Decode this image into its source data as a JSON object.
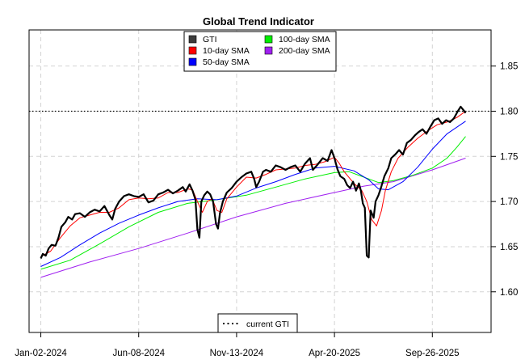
{
  "chart_data": {
    "type": "line",
    "title": "Global Trend Indicator",
    "xlabel": "",
    "ylabel": "",
    "x_tick_labels": [
      "Jan-02-2024",
      "Jun-08-2024",
      "Nov-13-2024",
      "Apr-20-2025",
      "Sep-26-2025"
    ],
    "y_tick_labels": [
      "1.60",
      "1.65",
      "1.70",
      "1.75",
      "1.80",
      "1.85"
    ],
    "y_ticks": [
      1.6,
      1.65,
      1.7,
      1.75,
      1.8,
      1.85
    ],
    "xlim": [
      -0.12,
      4.6
    ],
    "ylim": [
      1.555,
      1.89
    ],
    "grid": true,
    "legend_position": "top-center",
    "reference_line": {
      "value": 1.8,
      "style": "dotted",
      "color": "#000000",
      "label": "current GTI"
    },
    "series": [
      {
        "name": "GTI",
        "color": "#000000",
        "width": 2.2,
        "legend_swatch": "#3c3c3c",
        "points": [
          [
            0,
            1.637
          ],
          [
            0.02,
            1.642
          ],
          [
            0.05,
            1.64
          ],
          [
            0.08,
            1.648
          ],
          [
            0.11,
            1.652
          ],
          [
            0.15,
            1.651
          ],
          [
            0.18,
            1.66
          ],
          [
            0.21,
            1.672
          ],
          [
            0.25,
            1.677
          ],
          [
            0.28,
            1.683
          ],
          [
            0.32,
            1.68
          ],
          [
            0.35,
            1.686
          ],
          [
            0.4,
            1.687
          ],
          [
            0.45,
            1.683
          ],
          [
            0.5,
            1.688
          ],
          [
            0.55,
            1.691
          ],
          [
            0.6,
            1.689
          ],
          [
            0.65,
            1.695
          ],
          [
            0.7,
            1.685
          ],
          [
            0.73,
            1.68
          ],
          [
            0.76,
            1.692
          ],
          [
            0.8,
            1.7
          ],
          [
            0.85,
            1.706
          ],
          [
            0.9,
            1.708
          ],
          [
            0.95,
            1.706
          ],
          [
            1.0,
            1.705
          ],
          [
            1.05,
            1.708
          ],
          [
            1.1,
            1.699
          ],
          [
            1.15,
            1.701
          ],
          [
            1.2,
            1.708
          ],
          [
            1.25,
            1.71
          ],
          [
            1.3,
            1.713
          ],
          [
            1.35,
            1.709
          ],
          [
            1.4,
            1.712
          ],
          [
            1.45,
            1.716
          ],
          [
            1.48,
            1.711
          ],
          [
            1.52,
            1.719
          ],
          [
            1.55,
            1.712
          ],
          [
            1.58,
            1.702
          ],
          [
            1.6,
            1.669
          ],
          [
            1.62,
            1.66
          ],
          [
            1.64,
            1.7
          ],
          [
            1.67,
            1.707
          ],
          [
            1.7,
            1.711
          ],
          [
            1.73,
            1.708
          ],
          [
            1.76,
            1.7
          ],
          [
            1.79,
            1.675
          ],
          [
            1.81,
            1.67
          ],
          [
            1.83,
            1.687
          ],
          [
            1.86,
            1.7
          ],
          [
            1.9,
            1.71
          ],
          [
            1.95,
            1.715
          ],
          [
            2.0,
            1.722
          ],
          [
            2.05,
            1.727
          ],
          [
            2.1,
            1.731
          ],
          [
            2.15,
            1.733
          ],
          [
            2.18,
            1.725
          ],
          [
            2.2,
            1.716
          ],
          [
            2.23,
            1.722
          ],
          [
            2.27,
            1.733
          ],
          [
            2.3,
            1.735
          ],
          [
            2.35,
            1.733
          ],
          [
            2.4,
            1.74
          ],
          [
            2.45,
            1.738
          ],
          [
            2.5,
            1.735
          ],
          [
            2.55,
            1.738
          ],
          [
            2.6,
            1.74
          ],
          [
            2.65,
            1.733
          ],
          [
            2.7,
            1.742
          ],
          [
            2.75,
            1.748
          ],
          [
            2.78,
            1.735
          ],
          [
            2.82,
            1.74
          ],
          [
            2.88,
            1.748
          ],
          [
            2.93,
            1.745
          ],
          [
            2.97,
            1.757
          ],
          [
            3.0,
            1.748
          ],
          [
            3.03,
            1.736
          ],
          [
            3.06,
            1.728
          ],
          [
            3.1,
            1.725
          ],
          [
            3.13,
            1.718
          ],
          [
            3.16,
            1.715
          ],
          [
            3.19,
            1.722
          ],
          [
            3.22,
            1.712
          ],
          [
            3.25,
            1.72
          ],
          [
            3.27,
            1.712
          ],
          [
            3.29,
            1.698
          ],
          [
            3.31,
            1.693
          ],
          [
            3.33,
            1.64
          ],
          [
            3.35,
            1.638
          ],
          [
            3.37,
            1.69
          ],
          [
            3.4,
            1.682
          ],
          [
            3.42,
            1.7
          ],
          [
            3.45,
            1.707
          ],
          [
            3.48,
            1.717
          ],
          [
            3.51,
            1.728
          ],
          [
            3.55,
            1.737
          ],
          [
            3.58,
            1.748
          ],
          [
            3.62,
            1.752
          ],
          [
            3.66,
            1.757
          ],
          [
            3.7,
            1.752
          ],
          [
            3.74,
            1.765
          ],
          [
            3.78,
            1.768
          ],
          [
            3.82,
            1.773
          ],
          [
            3.86,
            1.777
          ],
          [
            3.9,
            1.78
          ],
          [
            3.94,
            1.775
          ],
          [
            3.98,
            1.783
          ],
          [
            4.02,
            1.79
          ],
          [
            4.06,
            1.792
          ],
          [
            4.1,
            1.786
          ],
          [
            4.14,
            1.79
          ],
          [
            4.18,
            1.788
          ],
          [
            4.22,
            1.792
          ],
          [
            4.26,
            1.8
          ],
          [
            4.29,
            1.805
          ],
          [
            4.32,
            1.801
          ],
          [
            4.34,
            1.798
          ]
        ]
      },
      {
        "name": "10-day SMA",
        "color": "#ff0000",
        "width": 1,
        "legend_swatch": "#ff0000",
        "points": [
          [
            0,
            1.639
          ],
          [
            0.1,
            1.645
          ],
          [
            0.2,
            1.66
          ],
          [
            0.3,
            1.673
          ],
          [
            0.4,
            1.682
          ],
          [
            0.5,
            1.685
          ],
          [
            0.6,
            1.688
          ],
          [
            0.7,
            1.688
          ],
          [
            0.8,
            1.693
          ],
          [
            0.9,
            1.702
          ],
          [
            1.0,
            1.704
          ],
          [
            1.1,
            1.703
          ],
          [
            1.2,
            1.704
          ],
          [
            1.3,
            1.71
          ],
          [
            1.4,
            1.71
          ],
          [
            1.5,
            1.714
          ],
          [
            1.55,
            1.713
          ],
          [
            1.6,
            1.7
          ],
          [
            1.65,
            1.688
          ],
          [
            1.7,
            1.7
          ],
          [
            1.75,
            1.703
          ],
          [
            1.8,
            1.69
          ],
          [
            1.85,
            1.688
          ],
          [
            1.9,
            1.703
          ],
          [
            2.0,
            1.716
          ],
          [
            2.1,
            1.727
          ],
          [
            2.2,
            1.726
          ],
          [
            2.3,
            1.73
          ],
          [
            2.4,
            1.735
          ],
          [
            2.5,
            1.736
          ],
          [
            2.6,
            1.737
          ],
          [
            2.7,
            1.74
          ],
          [
            2.8,
            1.741
          ],
          [
            2.9,
            1.744
          ],
          [
            3.0,
            1.749
          ],
          [
            3.05,
            1.742
          ],
          [
            3.1,
            1.733
          ],
          [
            3.2,
            1.72
          ],
          [
            3.28,
            1.712
          ],
          [
            3.33,
            1.7
          ],
          [
            3.38,
            1.68
          ],
          [
            3.43,
            1.673
          ],
          [
            3.48,
            1.69
          ],
          [
            3.52,
            1.712
          ],
          [
            3.58,
            1.733
          ],
          [
            3.65,
            1.748
          ],
          [
            3.75,
            1.76
          ],
          [
            3.85,
            1.77
          ],
          [
            3.95,
            1.778
          ],
          [
            4.05,
            1.785
          ],
          [
            4.15,
            1.788
          ],
          [
            4.25,
            1.793
          ],
          [
            4.34,
            1.8
          ]
        ]
      },
      {
        "name": "50-day SMA",
        "color": "#0000ff",
        "width": 1,
        "legend_swatch": "#0000ff",
        "points": [
          [
            0,
            1.628
          ],
          [
            0.2,
            1.638
          ],
          [
            0.4,
            1.652
          ],
          [
            0.6,
            1.665
          ],
          [
            0.8,
            1.676
          ],
          [
            1.0,
            1.685
          ],
          [
            1.2,
            1.693
          ],
          [
            1.4,
            1.7
          ],
          [
            1.6,
            1.703
          ],
          [
            1.8,
            1.702
          ],
          [
            2.0,
            1.706
          ],
          [
            2.2,
            1.715
          ],
          [
            2.4,
            1.722
          ],
          [
            2.6,
            1.73
          ],
          [
            2.8,
            1.737
          ],
          [
            3.0,
            1.739
          ],
          [
            3.2,
            1.734
          ],
          [
            3.35,
            1.724
          ],
          [
            3.45,
            1.714
          ],
          [
            3.55,
            1.713
          ],
          [
            3.7,
            1.722
          ],
          [
            3.85,
            1.738
          ],
          [
            4.0,
            1.758
          ],
          [
            4.15,
            1.775
          ],
          [
            4.34,
            1.789
          ]
        ]
      },
      {
        "name": "100-day SMA",
        "color": "#00ee00",
        "width": 1,
        "legend_swatch": "#00ee00",
        "points": [
          [
            0,
            1.625
          ],
          [
            0.3,
            1.635
          ],
          [
            0.6,
            1.653
          ],
          [
            0.9,
            1.672
          ],
          [
            1.2,
            1.688
          ],
          [
            1.5,
            1.698
          ],
          [
            1.8,
            1.702
          ],
          [
            2.1,
            1.707
          ],
          [
            2.4,
            1.716
          ],
          [
            2.7,
            1.725
          ],
          [
            3.0,
            1.732
          ],
          [
            3.15,
            1.733
          ],
          [
            3.3,
            1.727
          ],
          [
            3.45,
            1.721
          ],
          [
            3.6,
            1.723
          ],
          [
            3.8,
            1.729
          ],
          [
            4.0,
            1.737
          ],
          [
            4.15,
            1.748
          ],
          [
            4.25,
            1.76
          ],
          [
            4.34,
            1.772
          ]
        ]
      },
      {
        "name": "200-day SMA",
        "color": "#a020f0",
        "width": 1,
        "legend_swatch": "#a020f0",
        "points": [
          [
            0,
            1.616
          ],
          [
            0.5,
            1.633
          ],
          [
            1.0,
            1.648
          ],
          [
            1.5,
            1.665
          ],
          [
            2.0,
            1.683
          ],
          [
            2.5,
            1.698
          ],
          [
            3.0,
            1.71
          ],
          [
            3.3,
            1.717
          ],
          [
            3.6,
            1.722
          ],
          [
            4.0,
            1.735
          ],
          [
            4.34,
            1.748
          ]
        ]
      }
    ]
  }
}
